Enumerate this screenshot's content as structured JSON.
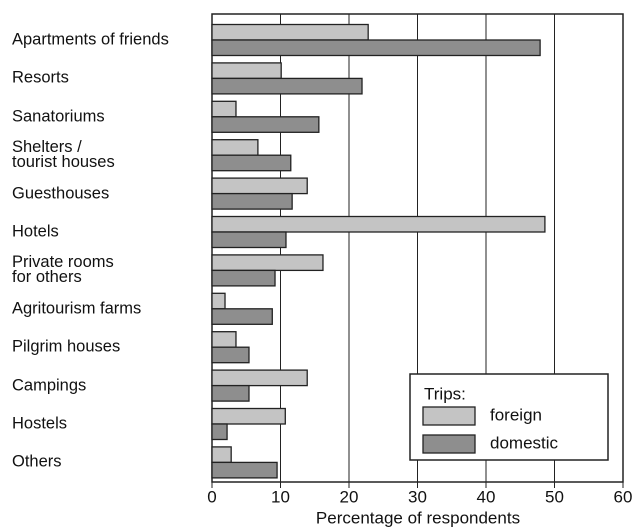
{
  "chart_data": {
    "type": "hbar",
    "categories": [
      "Apartments of friends",
      "Resorts",
      "Sanatoriums",
      "Shelters /\ntourist houses",
      "Guesthouses",
      "Hotels",
      "Private rooms\nfor others",
      "Agritourism farms",
      "Pilgrim houses",
      "Campings",
      "Hostels",
      "Others"
    ],
    "series": [
      {
        "name": "foreign",
        "color": "#c4c4c4",
        "values": [
          22.8,
          10.1,
          3.5,
          6.7,
          13.9,
          48.6,
          16.2,
          1.9,
          3.5,
          13.9,
          10.7,
          2.8
        ]
      },
      {
        "name": "domestic",
        "color": "#8e8e8e",
        "values": [
          47.9,
          21.9,
          15.6,
          11.5,
          11.7,
          10.8,
          9.2,
          8.8,
          5.4,
          5.4,
          2.2,
          9.5
        ]
      }
    ],
    "xlim": [
      0,
      60
    ],
    "xticks": [
      0,
      10,
      20,
      30,
      40,
      50,
      60
    ],
    "xlabel": "Percentage of respondents",
    "legend_title": "Trips:",
    "legend": "lower right",
    "grid": true
  }
}
